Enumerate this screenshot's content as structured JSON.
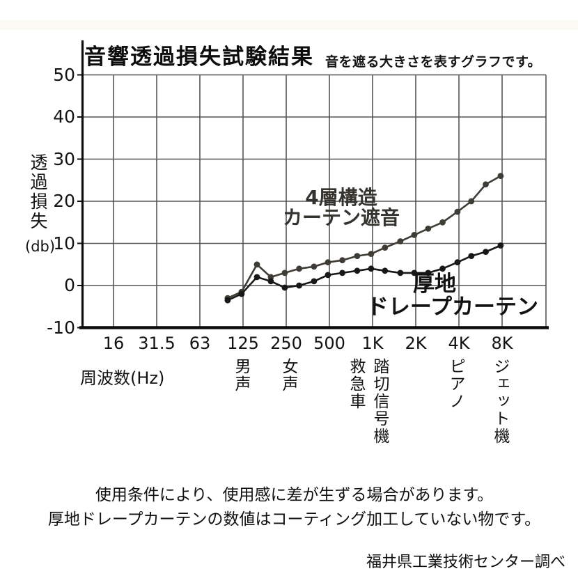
{
  "header": {
    "title": "音響透過損失試験結果",
    "subtitle": "音を遮る大きさを表すグラフです。"
  },
  "chart_data": {
    "type": "line",
    "title": "音響透過損失試験結果",
    "subtitle": "音を遮る大きさを表すグラフです。",
    "xlabel": "周波数(Hz)",
    "ylabel": "透過損失(db)",
    "ylabel_main": "透過損失",
    "ylabel_unit": "(db)",
    "xscale": "log-octave",
    "grid": true,
    "legend_position": "inline-labels",
    "ylim": [
      -10,
      50
    ],
    "y_ticks": [
      50,
      40,
      30,
      20,
      10,
      0,
      -10
    ],
    "x_tick_labels": [
      "16",
      "31.5",
      "63",
      "125",
      "250",
      "500",
      "1K",
      "2K",
      "4K",
      "8K"
    ],
    "x_tick_freqs": [
      16,
      31.5,
      63,
      125,
      250,
      500,
      1000,
      2000,
      4000,
      8000
    ],
    "x": [
      100,
      125,
      160,
      200,
      250,
      315,
      400,
      500,
      630,
      800,
      1000,
      1250,
      1600,
      2000,
      2500,
      3150,
      4000,
      5000,
      6300,
      8000
    ],
    "series": [
      {
        "name": "4層構造カーテン遮音",
        "label_lines": [
          "4層構造",
          "カーテン遮音"
        ],
        "color": "#3e3c34",
        "values": [
          -3,
          -1.5,
          5,
          2,
          3,
          4,
          4.5,
          5.5,
          6,
          7,
          7.5,
          9,
          10.5,
          12,
          13.5,
          15,
          17.5,
          20,
          24,
          26
        ]
      },
      {
        "name": "厚地ドレープカーテン",
        "label_lines": [
          "厚地",
          "ドレープカーテン"
        ],
        "color": "#181818",
        "values": [
          -3.5,
          -2,
          2,
          1,
          -0.5,
          0,
          1,
          2.5,
          3,
          3.5,
          4,
          3.5,
          3,
          3,
          3,
          4,
          5.5,
          7,
          8,
          9.5
        ]
      }
    ],
    "sound_annotations": [
      "男声",
      "女声",
      "救急車",
      "踏切信号機",
      "ピアノ",
      "ジェット機"
    ]
  },
  "footnotes": {
    "line1": "使用条件により、使用感に差が生ずる場合があります。",
    "line2": "厚地ドレープカーテンの数値はコーティング加工していない物です。"
  },
  "source": "福井県工業技術センター調べ"
}
